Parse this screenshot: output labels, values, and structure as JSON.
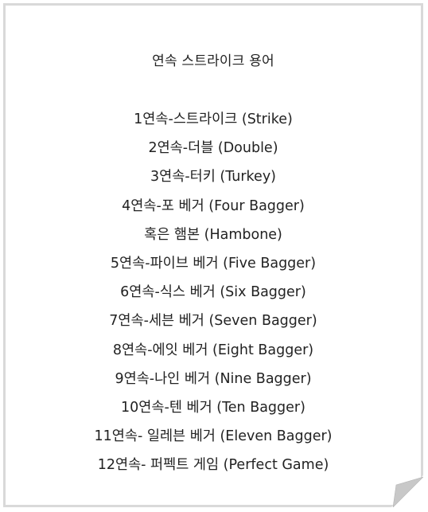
{
  "title": "연속 스트라이크 용어",
  "lines": [
    "1연속-스트라이크 (Strike)",
    "2연속-더블 (Double)",
    "3연속-터키 (Turkey)",
    "4연속-포 베거 (Four Bagger)",
    "혹은 햄본 (Hambone)",
    "5연속-파이브 베거 (Five Bagger)",
    "6연속-식스 베거 (Six Bagger)",
    "7연속-세븐 베거 (Seven Bagger)",
    "8연속-에잇 베거 (Eight Bagger)",
    "9연속-나인 베거 (Nine Bagger)",
    "10연속-텐 베거 (Ten Bagger)",
    "11연속- 일레븐 베거 (Eleven Bagger)",
    "12연속- 퍼펙트 게임 (Perfect Game)"
  ],
  "colors": {
    "border": "#d9d9d9",
    "text": "#222222",
    "curl": "#c8c8c8"
  }
}
